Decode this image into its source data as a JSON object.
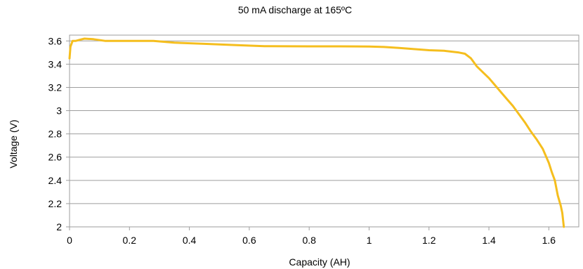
{
  "chart_data": {
    "type": "line",
    "title": "50 mA discharge at 165ºC",
    "xlabel": "Capacity (AH)",
    "ylabel": "Voltage (V)",
    "xlim": [
      0,
      1.7
    ],
    "ylim": [
      2,
      3.65
    ],
    "xticks": [
      0,
      0.2,
      0.4,
      0.6,
      0.8,
      1,
      1.2,
      1.4,
      1.6
    ],
    "xtick_labels": [
      "0",
      "0.2",
      "0.4",
      "0.6",
      "0.8",
      "1",
      "1.2",
      "1.4",
      "1.6"
    ],
    "yticks": [
      2,
      2.2,
      2.4,
      2.6,
      2.8,
      3,
      3.2,
      3.4,
      3.6
    ],
    "ytick_labels": [
      "2",
      "2.2",
      "2.4",
      "2.6",
      "2.8",
      "3",
      "3.2",
      "3.4",
      "3.6"
    ],
    "grid": true,
    "legend": "none",
    "series": [
      {
        "color": "#f5be1e",
        "x": [
          0,
          0.003,
          0.01,
          0.02,
          0.035,
          0.05,
          0.08,
          0.12,
          0.2,
          0.28,
          0.35,
          0.45,
          0.55,
          0.65,
          0.8,
          0.9,
          1.0,
          1.05,
          1.1,
          1.2,
          1.25,
          1.3,
          1.32,
          1.34,
          1.36,
          1.38,
          1.4,
          1.42,
          1.44,
          1.46,
          1.48,
          1.5,
          1.52,
          1.54,
          1.56,
          1.58,
          1.6,
          1.61,
          1.62,
          1.63,
          1.64,
          1.645,
          1.65
        ],
        "y": [
          3.45,
          3.55,
          3.6,
          3.6,
          3.61,
          3.62,
          3.615,
          3.6,
          3.6,
          3.6,
          3.585,
          3.575,
          3.565,
          3.555,
          3.553,
          3.553,
          3.552,
          3.548,
          3.54,
          3.52,
          3.515,
          3.5,
          3.49,
          3.45,
          3.38,
          3.33,
          3.28,
          3.22,
          3.16,
          3.1,
          3.04,
          2.97,
          2.9,
          2.82,
          2.75,
          2.67,
          2.55,
          2.47,
          2.4,
          2.27,
          2.18,
          2.12,
          2.0
        ]
      }
    ]
  }
}
